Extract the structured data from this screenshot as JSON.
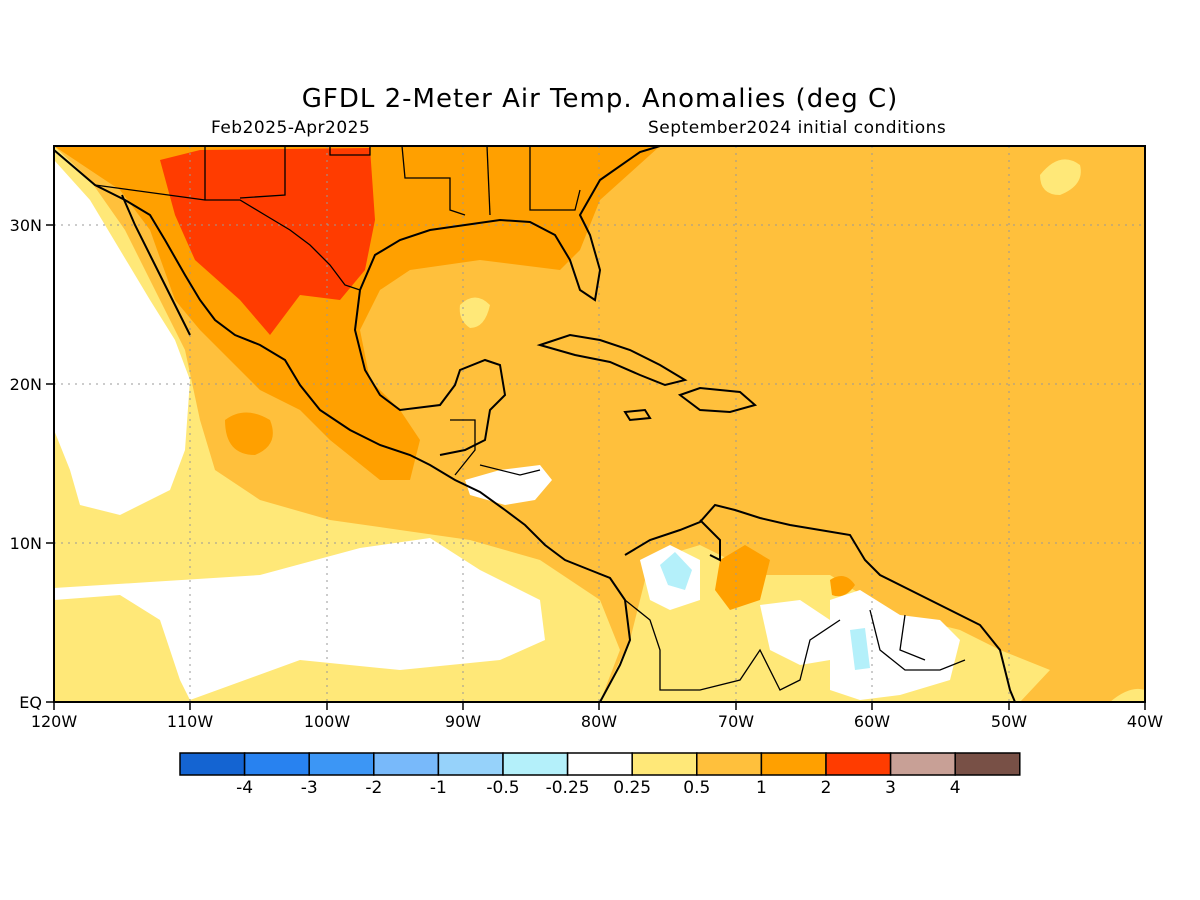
{
  "title": "GFDL 2-Meter Air Temp. Anomalies (deg C)",
  "period": "Feb2025-Apr2025",
  "init": "September2024 initial conditions",
  "lat_labels": [
    "30N",
    "20N",
    "10N",
    "EQ"
  ],
  "lon_labels": [
    "120W",
    "110W",
    "100W",
    "90W",
    "80W",
    "70W",
    "60W",
    "50W",
    "40W"
  ],
  "legend": {
    "colors": [
      "#1464d2",
      "#2882f0",
      "#3c96f5",
      "#78b9fa",
      "#96d2fa",
      "#b4f0fa",
      "#ffffff",
      "#ffe878",
      "#ffc03c",
      "#ffa000",
      "#ff3c00",
      "#c8a096",
      "#785046"
    ],
    "labels": [
      "-4",
      "-3",
      "-2",
      "-1",
      "-0.5",
      "-0.25",
      "0.25",
      "0.5",
      "1",
      "2",
      "3",
      "4"
    ]
  }
}
